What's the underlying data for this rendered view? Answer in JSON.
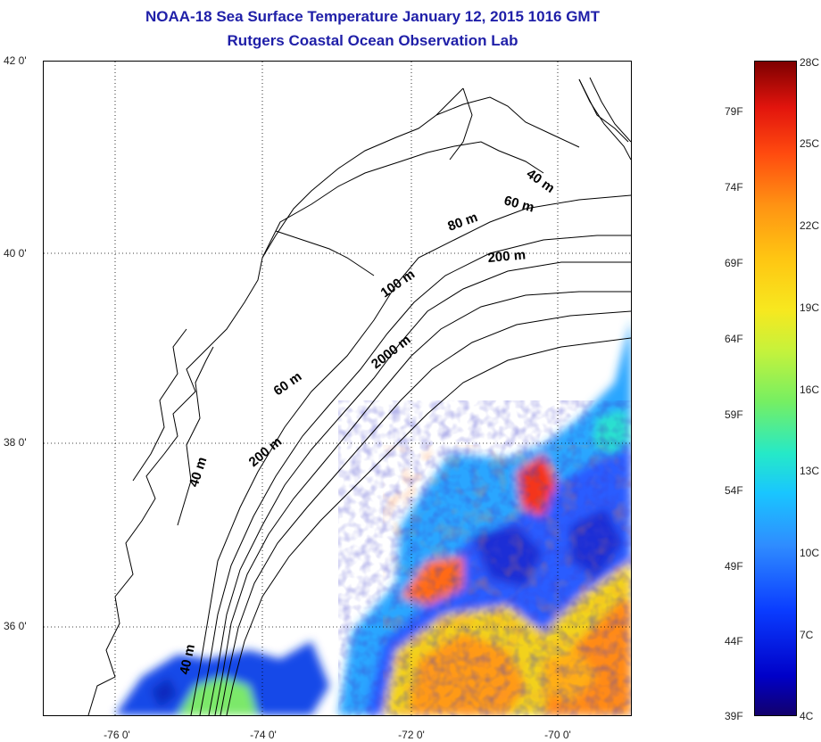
{
  "header": {
    "title": "NOAA-18 Sea Surface Temperature January 12, 2015 1016 GMT",
    "subtitle": "Rutgers Coastal Ocean Observation Lab"
  },
  "map": {
    "lat_labels": [
      "42 0'",
      "40 0'",
      "38 0'",
      "36 0'"
    ],
    "lon_labels": [
      "-76 0'",
      "-74 0'",
      "-72 0'",
      "-70 0'"
    ],
    "depth_labels": [
      "40 m",
      "60 m",
      "80 m",
      "200 m",
      "100 m",
      "2000 m",
      "60 m",
      "200 m",
      "40 m",
      "40 m"
    ],
    "grid": true
  },
  "colorbar": {
    "fahrenheit_labels": [
      "79F",
      "74F",
      "69F",
      "64F",
      "59F",
      "54F",
      "49F",
      "44F",
      "39F"
    ],
    "celsius_labels": [
      "28C",
      "25C",
      "22C",
      "19C",
      "16C",
      "13C",
      "10C",
      "7C",
      "4C"
    ],
    "min_color": "#12006c",
    "max_color": "#7e0000"
  }
}
